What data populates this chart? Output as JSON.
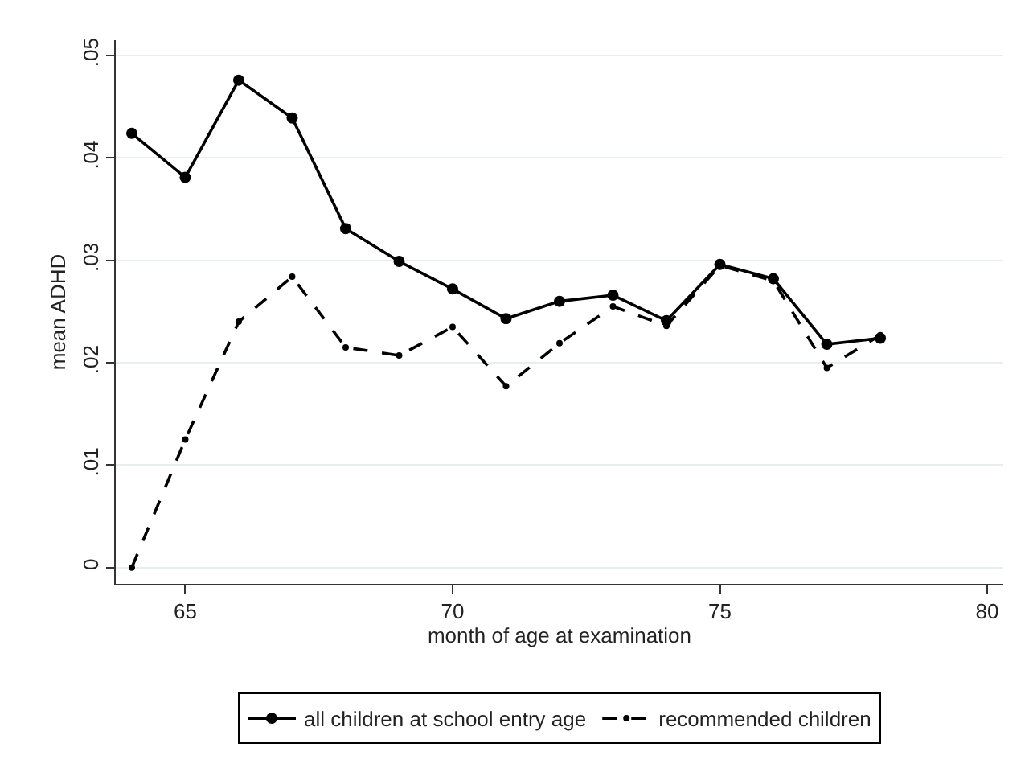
{
  "chart_data": {
    "type": "line",
    "xlabel": "month of age at examination",
    "ylabel": "mean ADHD",
    "x": [
      64,
      65,
      66,
      67,
      68,
      69,
      70,
      71,
      72,
      73,
      74,
      75,
      76,
      77,
      78
    ],
    "series": [
      {
        "name": "all children at school entry age",
        "color": "#000000",
        "line_style": "solid",
        "values": [
          0.0424,
          0.0381,
          0.0476,
          0.0439,
          0.0331,
          0.0299,
          0.0272,
          0.0243,
          0.026,
          0.0266,
          0.0241,
          0.0296,
          0.0282,
          0.0218,
          0.0224
        ]
      },
      {
        "name": "recommended children",
        "color": "#000000",
        "line_style": "dashed",
        "values": [
          0,
          0.0125,
          0.024,
          0.0284,
          0.0215,
          0.0207,
          0.0235,
          0.0177,
          0.0219,
          0.0255,
          0.0236,
          0.0295,
          0.028,
          0.0195,
          0.0227
        ]
      }
    ],
    "xlim": [
      63.7,
      80.3
    ],
    "xticks": [
      65,
      70,
      75,
      80
    ],
    "ylim": [
      -0.0016,
      0.0515
    ],
    "yticks": [
      {
        "value": 0,
        "label": "0"
      },
      {
        "value": 0.01,
        "label": ".01"
      },
      {
        "value": 0.02,
        "label": ".02"
      },
      {
        "value": 0.03,
        "label": ".03"
      },
      {
        "value": 0.04,
        "label": ".04"
      },
      {
        "value": 0.05,
        "label": ".05"
      }
    ],
    "grid": "y",
    "legend": "bottom",
    "marker": "circle"
  }
}
